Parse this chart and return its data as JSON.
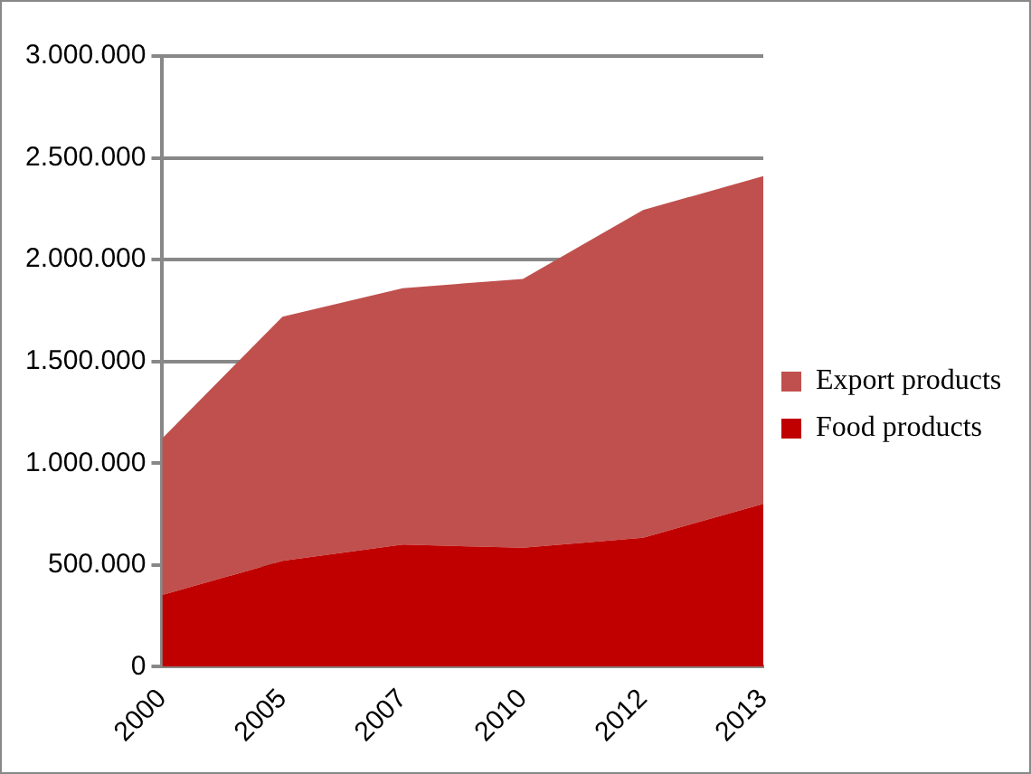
{
  "chart_data": {
    "type": "area",
    "stacked": true,
    "categories": [
      "2000",
      "2005",
      "2007",
      "2010",
      "2012",
      "2013"
    ],
    "series": [
      {
        "name": "Food products",
        "color": "#c00000",
        "values": [
          352000,
          520000,
          600000,
          585000,
          634000,
          800000
        ]
      },
      {
        "name": "Export products",
        "color": "#c0504d",
        "values": [
          770000,
          1200000,
          1260000,
          1320000,
          1610000,
          1610000
        ]
      }
    ],
    "ylim": [
      0,
      3000000
    ],
    "yticks": [
      {
        "value": 0,
        "label": "0"
      },
      {
        "value": 500000,
        "label": "500.000"
      },
      {
        "value": 1000000,
        "label": "1.000.000"
      },
      {
        "value": 1500000,
        "label": "1.500.000"
      },
      {
        "value": 2000000,
        "label": "2.000.000"
      },
      {
        "value": 2500000,
        "label": "2.500.000"
      },
      {
        "value": 3000000,
        "label": "3.000.000"
      }
    ],
    "grid": "y",
    "legend": "right"
  }
}
